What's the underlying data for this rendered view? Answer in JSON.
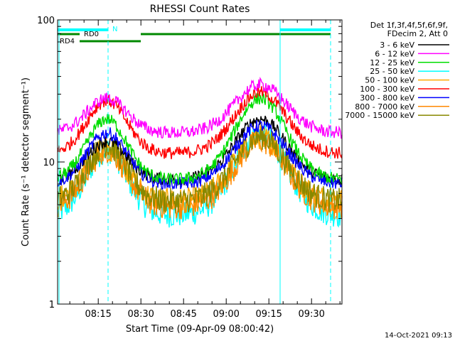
{
  "chart_data": {
    "type": "line",
    "title": "RHESSI Count Rates",
    "xlabel": "Start Time (09-Apr-09 08:00:42)",
    "ylabel": "Count Rate (s⁻¹ detector segment⁻¹)",
    "yscale": "log",
    "ylim": [
      1,
      100
    ],
    "xlim_minutes": [
      0.7,
      100.7
    ],
    "x_ticks": [
      "08:15",
      "08:30",
      "08:45",
      "09:00",
      "09:15",
      "09:30"
    ],
    "y_ticks": [
      "1",
      "10",
      "100"
    ],
    "grid": false,
    "legend_position": "right",
    "legend_header": [
      "Det 1f,3f,4f,5f,6f,9f,",
      "FDecim 2, Att 0"
    ],
    "series": [
      {
        "name": "3 - 6 keV",
        "color": "#000000",
        "minima": 7.5,
        "peak1": 14,
        "peak2": 20
      },
      {
        "name": "6 - 12 keV",
        "color": "#ff00ff",
        "minima": 16,
        "peak1": 28,
        "peak2": 35
      },
      {
        "name": "12 - 25 keV",
        "color": "#00dd00",
        "minima": 7.5,
        "peak1": 20,
        "peak2": 28
      },
      {
        "name": "25 - 50 keV",
        "color": "#00ffff",
        "minima": 4.2,
        "peak1": 12,
        "peak2": 16
      },
      {
        "name": "50 - 100 keV",
        "color": "#ffaa00",
        "minima": 5.3,
        "peak1": 12.5,
        "peak2": 15
      },
      {
        "name": "100 - 300 keV",
        "color": "#ff0000",
        "minima": 11.5,
        "peak1": 27,
        "peak2": 31
      },
      {
        "name": "300 - 800 keV",
        "color": "#0000ff",
        "minima": 7,
        "peak1": 16,
        "peak2": 18
      },
      {
        "name": "800 - 7000 keV",
        "color": "#ff8800",
        "minima": 4.8,
        "peak1": 12,
        "peak2": 14
      },
      {
        "name": "7000 - 15000 keV",
        "color": "#888800",
        "minima": 5.3,
        "peak1": 13,
        "peak2": 15
      }
    ],
    "flag_bars": [
      {
        "label": "N",
        "color": "#00ffff"
      },
      {
        "label": "RD0",
        "color": "#008800"
      },
      {
        "label": "RD4",
        "color": "#008800"
      }
    ],
    "timestamp": "14-Oct-2021 09:13"
  }
}
